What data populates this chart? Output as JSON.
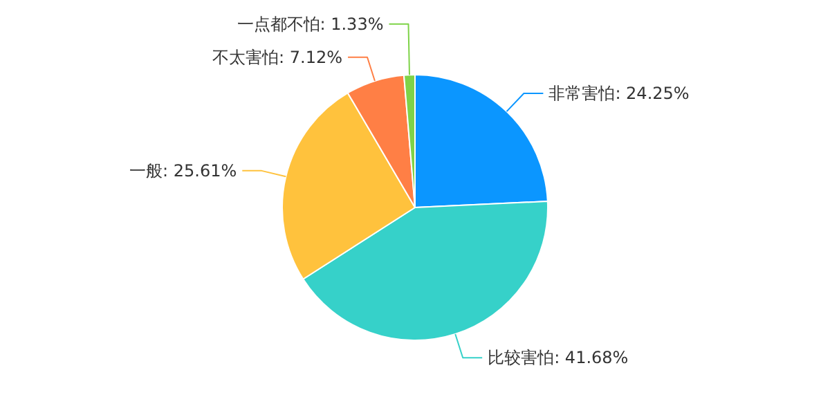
{
  "chart_data": {
    "type": "pie",
    "categories": [
      "非常害怕",
      "比较害怕",
      "一般",
      "不太害怕",
      "一点都不怕"
    ],
    "values": [
      24.25,
      41.68,
      25.61,
      7.12,
      1.33
    ],
    "colors": [
      "#0b96ff",
      "#36d1c9",
      "#ffc23d",
      "#ff7f45",
      "#7ed348"
    ],
    "value_labels": [
      ": 24.25%",
      ": 41.68%",
      ": 25.61%",
      ": 7.12%",
      ": 1.33%"
    ]
  }
}
